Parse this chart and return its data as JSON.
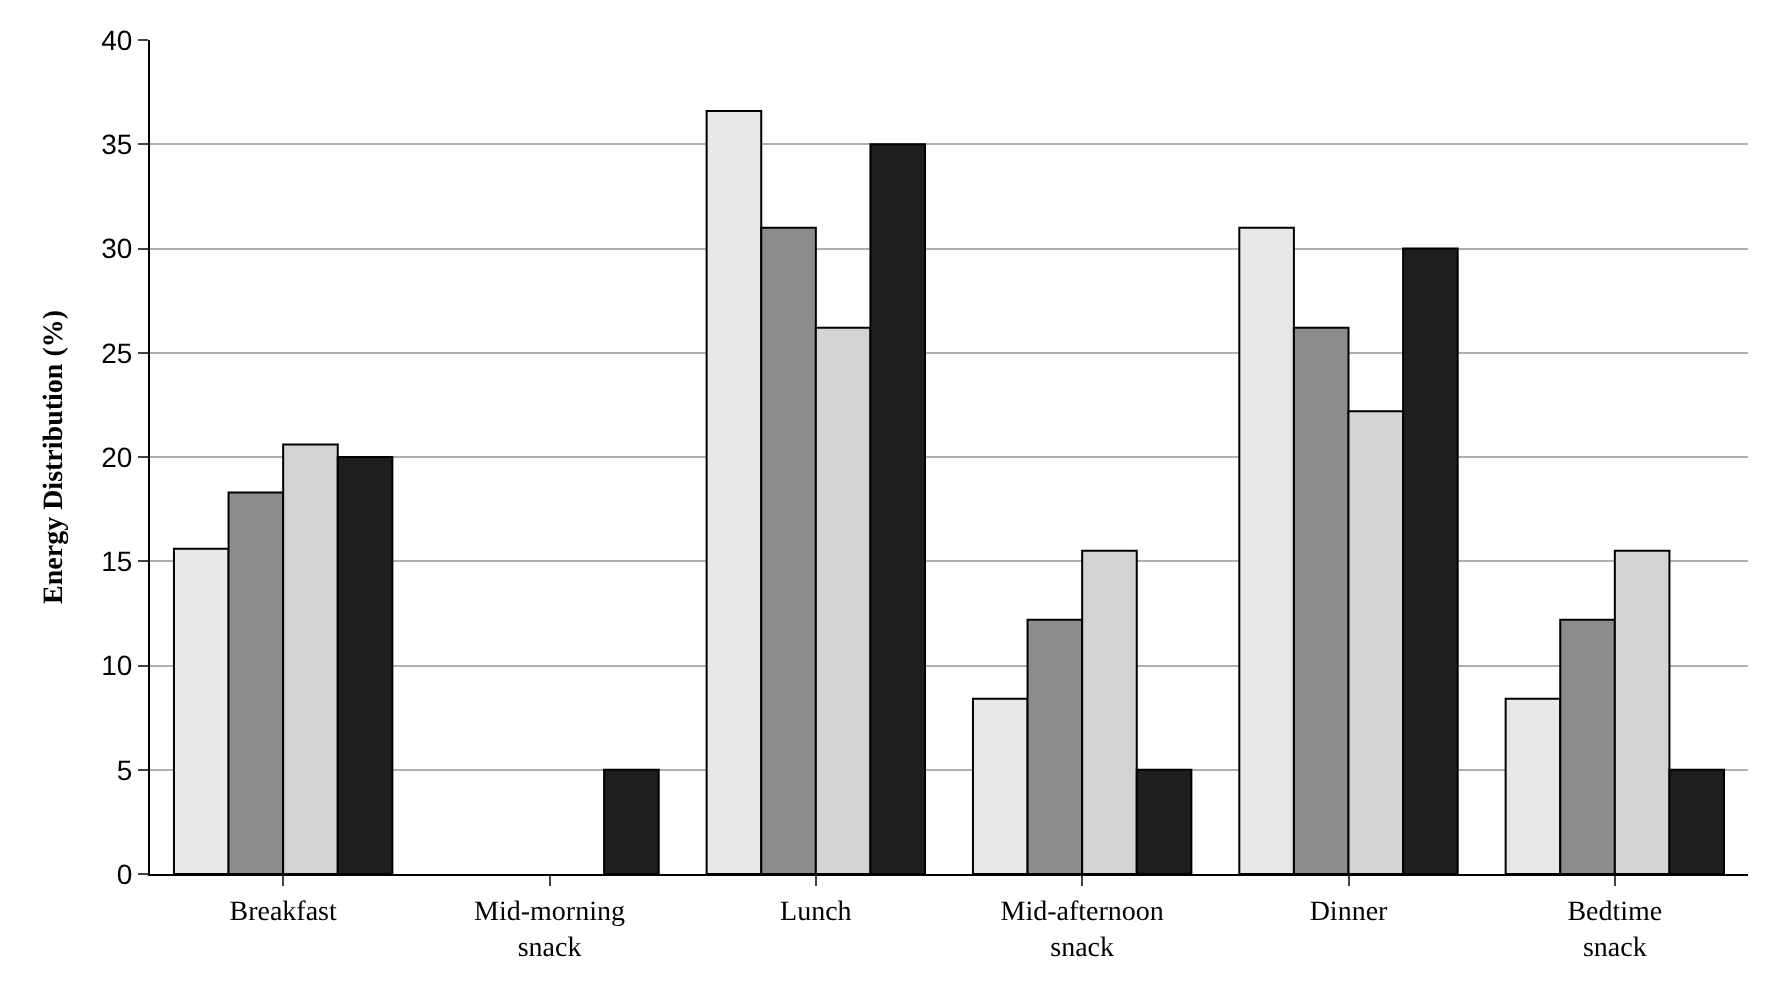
{
  "chart_data": {
    "type": "bar",
    "ylabel": "Energy Distribution (%)",
    "categories": [
      "Breakfast",
      "Mid-morning\nsnack",
      "Lunch",
      "Mid-afternoon\nsnack",
      "Dinner",
      "Bedtime\nsnack"
    ],
    "series": [
      {
        "color": "#e8e8e8",
        "values": [
          15.6,
          null,
          36.6,
          8.4,
          31.0,
          8.4
        ]
      },
      {
        "color": "#8c8c8c",
        "values": [
          18.3,
          null,
          31.0,
          12.2,
          26.2,
          12.2
        ]
      },
      {
        "color": "#d4d4d4",
        "values": [
          20.6,
          null,
          26.2,
          15.5,
          22.2,
          15.5
        ]
      },
      {
        "color": "#1e1e1e",
        "values": [
          20.0,
          5.0,
          35.0,
          5.0,
          30.0,
          5.0
        ]
      }
    ],
    "ylim": [
      0,
      40
    ],
    "yticks": [
      0,
      5,
      10,
      15,
      20,
      25,
      30,
      35,
      40
    ],
    "grid": "y"
  }
}
